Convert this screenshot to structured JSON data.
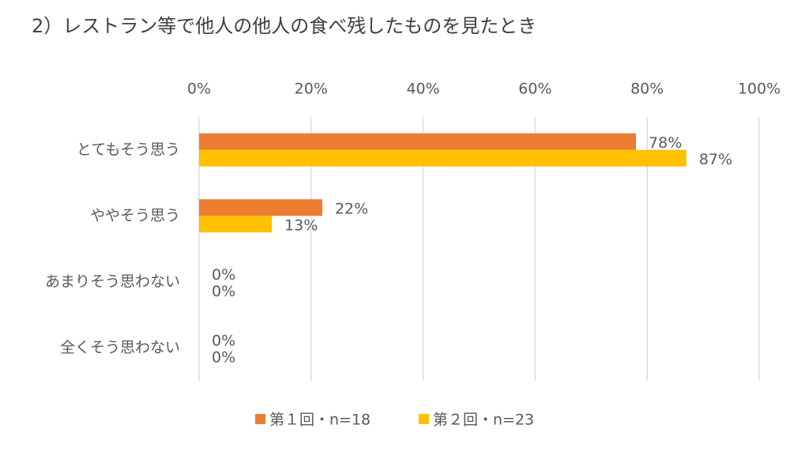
{
  "chart_data": {
    "type": "barh",
    "title": "2）レストラン等で他人の他人の食べ残したものを見たとき",
    "categories": [
      "とてもそう思う",
      "ややそう思う",
      "あまりそう思わない",
      "全くそう思わない"
    ],
    "series": [
      {
        "name": "第１回・n=18",
        "color": "#ed7d31",
        "values": [
          78,
          22,
          0,
          0
        ],
        "value_labels": [
          "78%",
          "22%",
          "0%",
          "0%"
        ]
      },
      {
        "name": "第２回・n=23",
        "color": "#ffc000",
        "values": [
          87,
          13,
          0,
          0
        ],
        "value_labels": [
          "87%",
          "13%",
          "0%",
          "0%"
        ]
      }
    ],
    "xlim": [
      0,
      100
    ],
    "xticks": [
      {
        "value": 0,
        "label": "0%"
      },
      {
        "value": 20,
        "label": "20%"
      },
      {
        "value": 40,
        "label": "40%"
      },
      {
        "value": 60,
        "label": "60%"
      },
      {
        "value": 80,
        "label": "80%"
      },
      {
        "value": 100,
        "label": "100%"
      }
    ],
    "grid": true,
    "legend": "bottom"
  }
}
